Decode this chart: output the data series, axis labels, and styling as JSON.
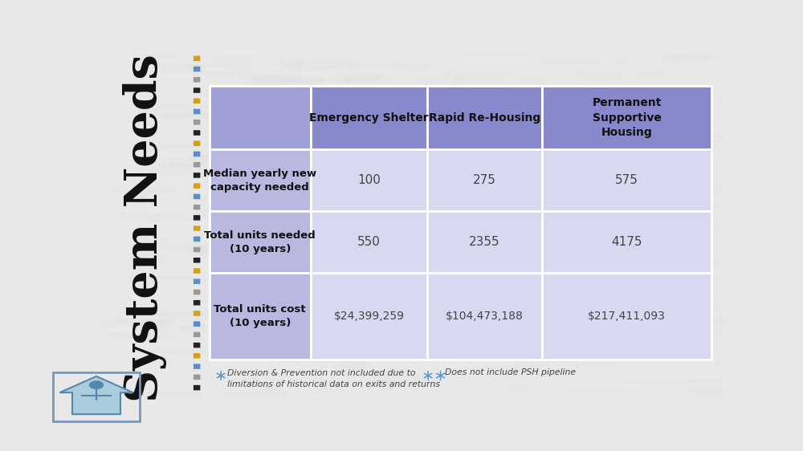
{
  "title": "System Needs",
  "background_color": "#e8e8e8",
  "col_headers": [
    "Emergency Shelter",
    "Rapid Re-Housing",
    "Permanent\nSupportive\nHousing"
  ],
  "row_headers": [
    "Median yearly new\ncapacity needed",
    "Total units needed\n(10 years)",
    "Total units cost\n(10 years)"
  ],
  "data": [
    [
      "100",
      "275",
      "575"
    ],
    [
      "550",
      "2355",
      "4175"
    ],
    [
      "$24,399,259",
      "$104,473,188",
      "$217,411,093"
    ]
  ],
  "footnote1_text": "Diversion & Prevention not included due to\nlimitations of historical data on exits and returns",
  "footnote2_text": "Does not include PSH pipeline",
  "dot_colors": [
    "#d4a017",
    "#5b8ec4",
    "#999999",
    "#222222"
  ],
  "header_cell_color": "#8888cc",
  "header_first_cell_color": "#a0a0d8",
  "data_row_header_color": "#b8b8e0",
  "data_cell_color": "#d8d8f0",
  "title_color": "#111111",
  "text_color": "#111111",
  "value_color": "#444444",
  "footnote_color": "#444444",
  "star_color": "#5599cc",
  "white_line": "#ffffff"
}
